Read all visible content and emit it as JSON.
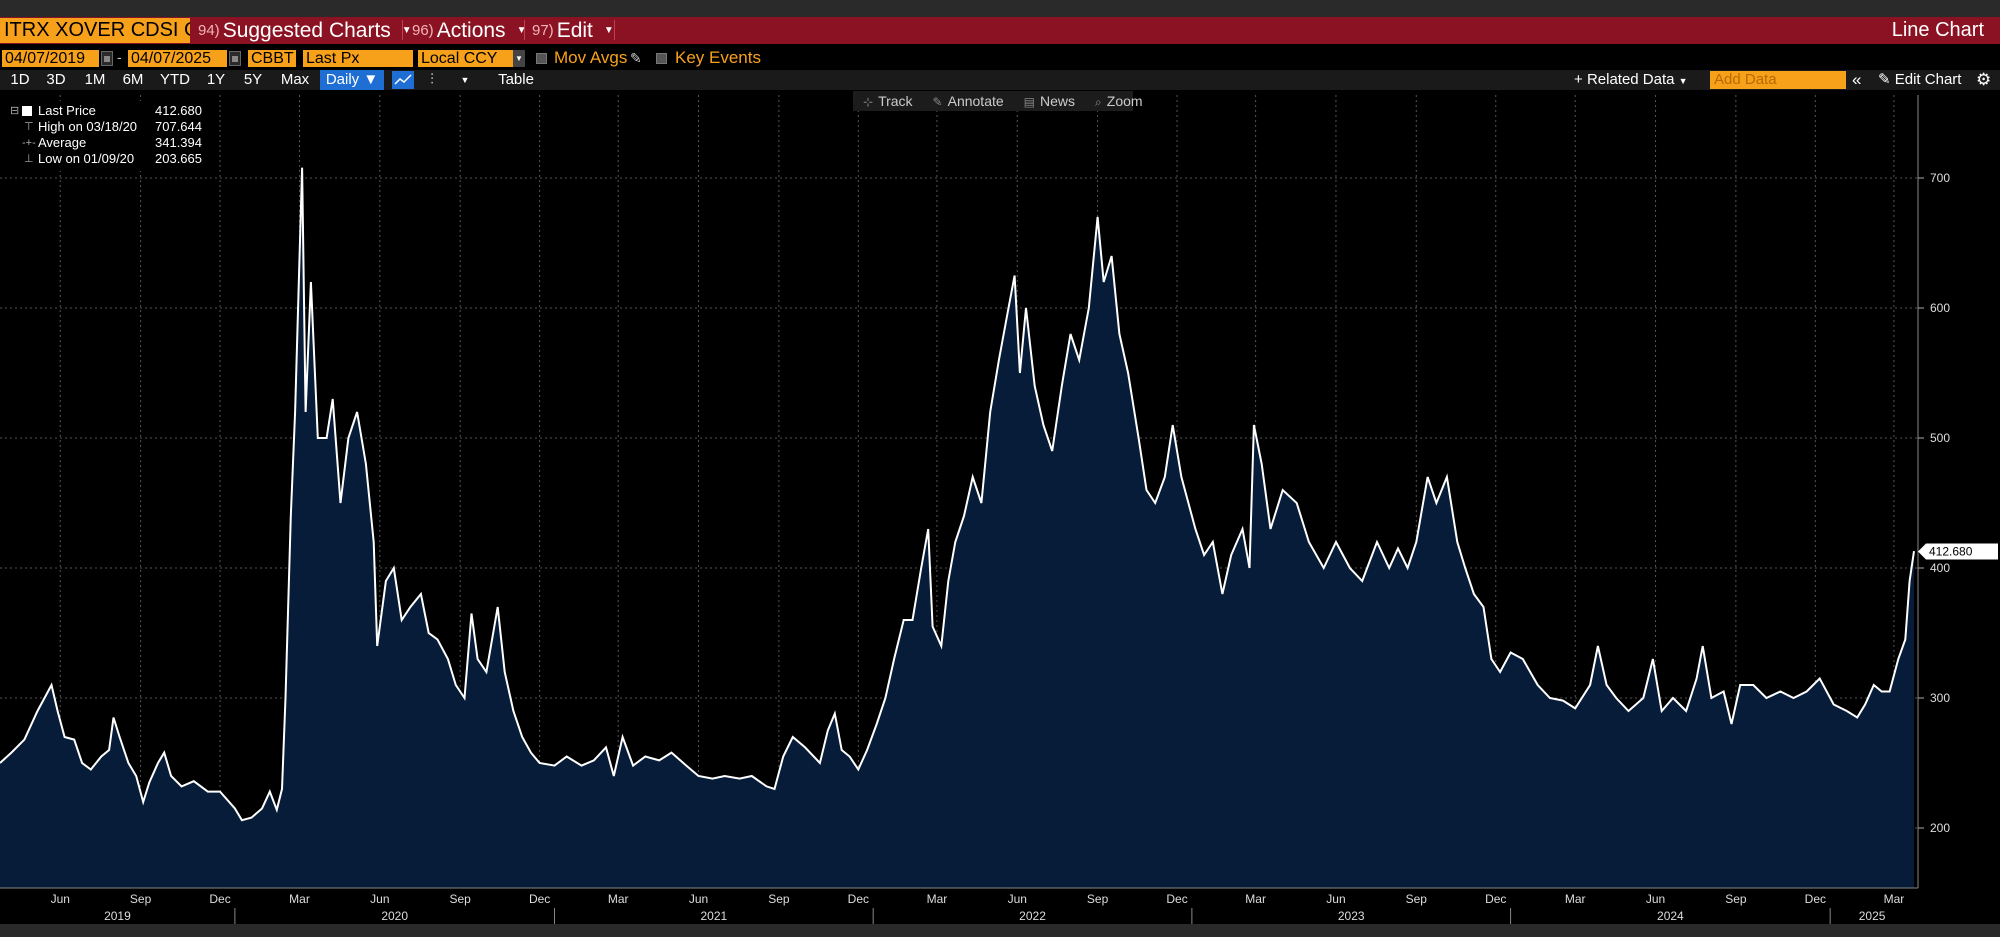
{
  "header": {
    "ticker": "ITRX XOVER CDSI GE",
    "suggested": {
      "num": "94)",
      "label": "Suggested Charts"
    },
    "actions": {
      "num": "96)",
      "label": "Actions"
    },
    "edit": {
      "num": "97)",
      "label": "Edit"
    },
    "chart_type": "Line Chart"
  },
  "controls": {
    "start_date": "04/07/2019",
    "end_date": "04/07/2025",
    "source": "CBBT",
    "field": "Last Px",
    "currency": "Local CCY",
    "mov_avgs": "Mov Avgs",
    "key_events": "Key Events"
  },
  "ranges": [
    "1D",
    "3D",
    "1M",
    "6M",
    "YTD",
    "1Y",
    "5Y",
    "Max"
  ],
  "frequency": "Daily",
  "table_label": "Table",
  "related_data": "Related Data",
  "add_data_placeholder": "Add Data",
  "edit_chart": "Edit Chart",
  "chart_toolbar": [
    "Track",
    "Annotate",
    "News",
    "Zoom"
  ],
  "legend": [
    {
      "label": "Last Price",
      "value": "412.680"
    },
    {
      "label": "High on 03/18/20",
      "value": "707.644"
    },
    {
      "label": "Average",
      "value": "341.394"
    },
    {
      "label": "Low on 01/09/20",
      "value": "203.665"
    }
  ],
  "colors": {
    "accent": "#f7a11a",
    "header": "#8a1222",
    "fill": "#061c38",
    "line": "#ffffff"
  },
  "chart_data": {
    "type": "area",
    "title": "",
    "xlabel": "",
    "ylabel": "",
    "ylim": [
      155,
      755
    ],
    "yticks": [
      200,
      300,
      400,
      500,
      600,
      700
    ],
    "last_value_label": "412.680",
    "x_start": "2019-04-07",
    "x_end": "2025-04-07",
    "month_ticks": [
      "Jun",
      "Sep",
      "Dec",
      "Mar",
      "Jun",
      "Sep",
      "Dec",
      "Mar",
      "Jun",
      "Sep",
      "Dec",
      "Mar",
      "Jun",
      "Sep",
      "Dec",
      "Mar",
      "Jun",
      "Sep",
      "Dec",
      "Mar",
      "Jun",
      "Sep",
      "Dec",
      "Mar"
    ],
    "years": [
      "2019",
      "2020",
      "2021",
      "2022",
      "2023",
      "2024",
      "2025"
    ],
    "series": [
      {
        "name": "Last Price",
        "points": [
          [
            "2019-04-07",
            250
          ],
          [
            "2019-04-20",
            258
          ],
          [
            "2019-05-05",
            268
          ],
          [
            "2019-05-20",
            290
          ],
          [
            "2019-05-28",
            300
          ],
          [
            "2019-06-05",
            310
          ],
          [
            "2019-06-12",
            290
          ],
          [
            "2019-06-20",
            270
          ],
          [
            "2019-07-01",
            268
          ],
          [
            "2019-07-10",
            250
          ],
          [
            "2019-07-20",
            245
          ],
          [
            "2019-08-01",
            255
          ],
          [
            "2019-08-10",
            260
          ],
          [
            "2019-08-15",
            285
          ],
          [
            "2019-08-22",
            270
          ],
          [
            "2019-09-01",
            250
          ],
          [
            "2019-09-10",
            240
          ],
          [
            "2019-09-18",
            220
          ],
          [
            "2019-09-25",
            235
          ],
          [
            "2019-10-05",
            250
          ],
          [
            "2019-10-12",
            258
          ],
          [
            "2019-10-20",
            240
          ],
          [
            "2019-11-01",
            232
          ],
          [
            "2019-11-15",
            236
          ],
          [
            "2019-12-01",
            228
          ],
          [
            "2019-12-15",
            228
          ],
          [
            "2020-01-01",
            215
          ],
          [
            "2020-01-09",
            206
          ],
          [
            "2020-01-20",
            208
          ],
          [
            "2020-02-01",
            215
          ],
          [
            "2020-02-10",
            228
          ],
          [
            "2020-02-18",
            214
          ],
          [
            "2020-02-24",
            230
          ],
          [
            "2020-02-28",
            300
          ],
          [
            "2020-03-05",
            440
          ],
          [
            "2020-03-10",
            520
          ],
          [
            "2020-03-18",
            708
          ],
          [
            "2020-03-22",
            520
          ],
          [
            "2020-03-28",
            620
          ],
          [
            "2020-04-05",
            500
          ],
          [
            "2020-04-15",
            500
          ],
          [
            "2020-04-22",
            530
          ],
          [
            "2020-05-01",
            450
          ],
          [
            "2020-05-10",
            500
          ],
          [
            "2020-05-20",
            520
          ],
          [
            "2020-05-30",
            480
          ],
          [
            "2020-06-08",
            420
          ],
          [
            "2020-06-12",
            340
          ],
          [
            "2020-06-22",
            390
          ],
          [
            "2020-07-01",
            400
          ],
          [
            "2020-07-10",
            360
          ],
          [
            "2020-07-20",
            370
          ],
          [
            "2020-08-01",
            380
          ],
          [
            "2020-08-10",
            350
          ],
          [
            "2020-08-20",
            345
          ],
          [
            "2020-09-01",
            330
          ],
          [
            "2020-09-10",
            310
          ],
          [
            "2020-09-20",
            300
          ],
          [
            "2020-09-28",
            365
          ],
          [
            "2020-10-05",
            330
          ],
          [
            "2020-10-15",
            320
          ],
          [
            "2020-10-28",
            370
          ],
          [
            "2020-11-05",
            320
          ],
          [
            "2020-11-15",
            290
          ],
          [
            "2020-11-25",
            270
          ],
          [
            "2020-12-05",
            258
          ],
          [
            "2020-12-15",
            250
          ],
          [
            "2021-01-01",
            248
          ],
          [
            "2021-01-15",
            255
          ],
          [
            "2021-02-01",
            248
          ],
          [
            "2021-02-15",
            252
          ],
          [
            "2021-03-01",
            262
          ],
          [
            "2021-03-10",
            240
          ],
          [
            "2021-03-20",
            270
          ],
          [
            "2021-04-01",
            248
          ],
          [
            "2021-04-15",
            255
          ],
          [
            "2021-05-01",
            252
          ],
          [
            "2021-05-15",
            258
          ],
          [
            "2021-06-01",
            248
          ],
          [
            "2021-06-15",
            240
          ],
          [
            "2021-07-01",
            238
          ],
          [
            "2021-07-15",
            240
          ],
          [
            "2021-08-01",
            238
          ],
          [
            "2021-08-15",
            240
          ],
          [
            "2021-09-01",
            232
          ],
          [
            "2021-09-10",
            230
          ],
          [
            "2021-09-20",
            255
          ],
          [
            "2021-10-01",
            270
          ],
          [
            "2021-10-15",
            262
          ],
          [
            "2021-11-01",
            250
          ],
          [
            "2021-11-10",
            275
          ],
          [
            "2021-11-18",
            288
          ],
          [
            "2021-11-26",
            260
          ],
          [
            "2021-12-05",
            255
          ],
          [
            "2021-12-15",
            245
          ],
          [
            "2021-12-25",
            260
          ],
          [
            "2022-01-05",
            280
          ],
          [
            "2022-01-15",
            300
          ],
          [
            "2022-01-25",
            330
          ],
          [
            "2022-02-05",
            360
          ],
          [
            "2022-02-15",
            360
          ],
          [
            "2022-02-25",
            400
          ],
          [
            "2022-03-05",
            430
          ],
          [
            "2022-03-10",
            355
          ],
          [
            "2022-03-20",
            340
          ],
          [
            "2022-03-28",
            390
          ],
          [
            "2022-04-05",
            420
          ],
          [
            "2022-04-15",
            440
          ],
          [
            "2022-04-25",
            470
          ],
          [
            "2022-05-05",
            450
          ],
          [
            "2022-05-15",
            520
          ],
          [
            "2022-05-25",
            560
          ],
          [
            "2022-06-05",
            600
          ],
          [
            "2022-06-12",
            625
          ],
          [
            "2022-06-18",
            550
          ],
          [
            "2022-06-25",
            600
          ],
          [
            "2022-07-05",
            540
          ],
          [
            "2022-07-15",
            510
          ],
          [
            "2022-07-25",
            490
          ],
          [
            "2022-08-05",
            540
          ],
          [
            "2022-08-15",
            580
          ],
          [
            "2022-08-25",
            560
          ],
          [
            "2022-09-05",
            600
          ],
          [
            "2022-09-15",
            670
          ],
          [
            "2022-09-22",
            620
          ],
          [
            "2022-10-01",
            640
          ],
          [
            "2022-10-10",
            580
          ],
          [
            "2022-10-20",
            550
          ],
          [
            "2022-11-01",
            500
          ],
          [
            "2022-11-10",
            460
          ],
          [
            "2022-11-20",
            450
          ],
          [
            "2022-12-01",
            470
          ],
          [
            "2022-12-10",
            510
          ],
          [
            "2022-12-20",
            470
          ],
          [
            "2023-01-05",
            430
          ],
          [
            "2023-01-15",
            410
          ],
          [
            "2023-01-25",
            420
          ],
          [
            "2023-02-05",
            380
          ],
          [
            "2023-02-15",
            410
          ],
          [
            "2023-02-28",
            430
          ],
          [
            "2023-03-08",
            400
          ],
          [
            "2023-03-13",
            510
          ],
          [
            "2023-03-22",
            480
          ],
          [
            "2023-04-01",
            430
          ],
          [
            "2023-04-15",
            460
          ],
          [
            "2023-05-01",
            450
          ],
          [
            "2023-05-15",
            420
          ],
          [
            "2023-06-01",
            400
          ],
          [
            "2023-06-15",
            420
          ],
          [
            "2023-07-01",
            400
          ],
          [
            "2023-07-15",
            390
          ],
          [
            "2023-08-01",
            420
          ],
          [
            "2023-08-15",
            400
          ],
          [
            "2023-08-25",
            415
          ],
          [
            "2023-09-05",
            400
          ],
          [
            "2023-09-15",
            420
          ],
          [
            "2023-09-28",
            470
          ],
          [
            "2023-10-08",
            450
          ],
          [
            "2023-10-20",
            470
          ],
          [
            "2023-11-01",
            420
          ],
          [
            "2023-11-10",
            400
          ],
          [
            "2023-11-20",
            380
          ],
          [
            "2023-12-01",
            370
          ],
          [
            "2023-12-10",
            330
          ],
          [
            "2023-12-20",
            320
          ],
          [
            "2024-01-01",
            335
          ],
          [
            "2024-01-15",
            330
          ],
          [
            "2024-02-01",
            310
          ],
          [
            "2024-02-15",
            300
          ],
          [
            "2024-03-01",
            298
          ],
          [
            "2024-03-15",
            292
          ],
          [
            "2024-04-01",
            310
          ],
          [
            "2024-04-10",
            340
          ],
          [
            "2024-04-20",
            310
          ],
          [
            "2024-05-01",
            300
          ],
          [
            "2024-05-15",
            290
          ],
          [
            "2024-06-01",
            300
          ],
          [
            "2024-06-12",
            330
          ],
          [
            "2024-06-22",
            290
          ],
          [
            "2024-07-05",
            300
          ],
          [
            "2024-07-20",
            290
          ],
          [
            "2024-08-01",
            315
          ],
          [
            "2024-08-08",
            340
          ],
          [
            "2024-08-18",
            300
          ],
          [
            "2024-09-01",
            305
          ],
          [
            "2024-09-10",
            280
          ],
          [
            "2024-09-20",
            310
          ],
          [
            "2024-10-05",
            310
          ],
          [
            "2024-10-20",
            300
          ],
          [
            "2024-11-05",
            305
          ],
          [
            "2024-11-20",
            300
          ],
          [
            "2024-12-05",
            305
          ],
          [
            "2024-12-20",
            315
          ],
          [
            "2025-01-05",
            295
          ],
          [
            "2025-01-20",
            290
          ],
          [
            "2025-02-01",
            285
          ],
          [
            "2025-02-10",
            295
          ],
          [
            "2025-02-20",
            310
          ],
          [
            "2025-03-01",
            305
          ],
          [
            "2025-03-10",
            305
          ],
          [
            "2025-03-20",
            330
          ],
          [
            "2025-03-28",
            345
          ],
          [
            "2025-04-02",
            390
          ],
          [
            "2025-04-07",
            413
          ]
        ]
      }
    ]
  }
}
